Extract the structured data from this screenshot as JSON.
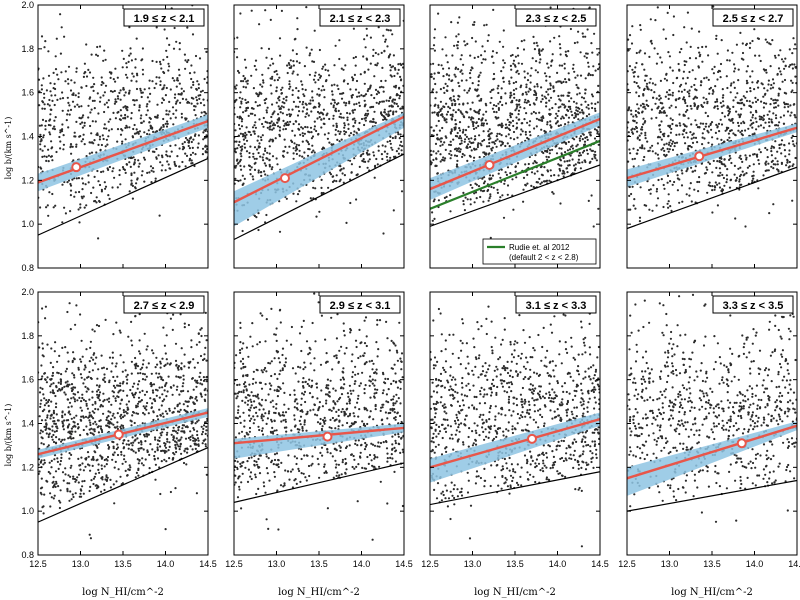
{
  "figure": {
    "xlabel": "log N_HI/cm^-2",
    "ylabel": "log b/(km s^-1)"
  },
  "chart_data": [
    {
      "type": "scatter",
      "panel": 1,
      "title": "1.9 ≤ z < 2.1",
      "xlim": [
        12.5,
        14.5
      ],
      "ylim": [
        0.8,
        2.0
      ],
      "xticks": [
        "12.5",
        "13.0",
        "13.5",
        "14.0",
        "14.5"
      ],
      "yticks": [
        "0.8",
        "1.0",
        "1.2",
        "1.4",
        "1.6",
        "1.8",
        "2.0"
      ],
      "fit_line": {
        "x": [
          12.5,
          14.5
        ],
        "y": [
          1.19,
          1.47
        ]
      },
      "band": {
        "x": [
          12.5,
          14.5
        ],
        "lower": [
          1.15,
          1.44
        ],
        "upper": [
          1.23,
          1.5
        ]
      },
      "lower_cutoff": {
        "x": [
          12.5,
          14.5
        ],
        "y": [
          0.95,
          1.3
        ]
      },
      "marker": {
        "x": 12.95,
        "y": 1.26
      },
      "scatter_center": 1.42,
      "scatter_spread": 0.22,
      "n_points": 900,
      "seed": 11
    },
    {
      "type": "scatter",
      "panel": 2,
      "title": "2.1 ≤ z < 2.3",
      "xlim": [
        12.5,
        14.5
      ],
      "ylim": [
        0.8,
        2.0
      ],
      "xticks": [
        "12.5",
        "13.0",
        "13.5",
        "14.0",
        "14.5"
      ],
      "yticks": [],
      "fit_line": {
        "x": [
          12.5,
          14.5
        ],
        "y": [
          1.1,
          1.49
        ]
      },
      "band": {
        "x": [
          12.5,
          14.5
        ],
        "lower": [
          0.99,
          1.44
        ],
        "upper": [
          1.15,
          1.51
        ]
      },
      "lower_cutoff": {
        "x": [
          12.5,
          14.5
        ],
        "y": [
          0.93,
          1.32
        ]
      },
      "marker": {
        "x": 13.1,
        "y": 1.21
      },
      "scatter_center": 1.43,
      "scatter_spread": 0.22,
      "n_points": 1100,
      "seed": 23
    },
    {
      "type": "scatter",
      "panel": 3,
      "title": "2.3 ≤ z < 2.5",
      "xlim": [
        12.5,
        14.5
      ],
      "ylim": [
        0.8,
        2.0
      ],
      "xticks": [
        "12.5",
        "13.0",
        "13.5",
        "14.0",
        "14.5"
      ],
      "yticks": [],
      "fit_line": {
        "x": [
          12.5,
          14.5
        ],
        "y": [
          1.16,
          1.48
        ]
      },
      "band": {
        "x": [
          12.5,
          14.5
        ],
        "lower": [
          1.11,
          1.45
        ],
        "upper": [
          1.21,
          1.51
        ]
      },
      "lower_cutoff": {
        "x": [
          12.5,
          14.5
        ],
        "y": [
          0.99,
          1.27
        ]
      },
      "reference_line": {
        "label": "Rudie et. al 2012",
        "x": [
          12.5,
          14.5
        ],
        "y": [
          1.07,
          1.38
        ],
        "color": "#2a7f2a"
      },
      "marker": {
        "x": 13.2,
        "y": 1.27
      },
      "legend": {
        "label": "Rudie et. al 2012",
        "note": "(default 2 < z < 2.8)",
        "position": "lower-right"
      },
      "scatter_center": 1.43,
      "scatter_spread": 0.23,
      "n_points": 1300,
      "seed": 37
    },
    {
      "type": "scatter",
      "panel": 4,
      "title": "2.5 ≤ z < 2.7",
      "xlim": [
        12.5,
        14.5
      ],
      "ylim": [
        0.8,
        2.0
      ],
      "xticks": [
        "12.5",
        "13.0",
        "13.5",
        "14.0",
        "14.5"
      ],
      "yticks": [],
      "fit_line": {
        "x": [
          12.5,
          14.5
        ],
        "y": [
          1.21,
          1.44
        ]
      },
      "band": {
        "x": [
          12.5,
          14.5
        ],
        "lower": [
          1.17,
          1.42
        ],
        "upper": [
          1.25,
          1.46
        ]
      },
      "lower_cutoff": {
        "x": [
          12.5,
          14.5
        ],
        "y": [
          0.98,
          1.26
        ]
      },
      "marker": {
        "x": 13.35,
        "y": 1.31
      },
      "scatter_center": 1.43,
      "scatter_spread": 0.22,
      "n_points": 1100,
      "seed": 41
    },
    {
      "type": "scatter",
      "panel": 5,
      "title": "2.7 ≤ z < 2.9",
      "xlim": [
        12.5,
        14.5
      ],
      "ylim": [
        0.8,
        2.0
      ],
      "xticks": [
        "12.5",
        "13.0",
        "13.5",
        "14.0",
        "14.5"
      ],
      "yticks": [
        "0.8",
        "1.0",
        "1.2",
        "1.4",
        "1.6",
        "1.8",
        "2.0"
      ],
      "fit_line": {
        "x": [
          12.5,
          14.5
        ],
        "y": [
          1.26,
          1.45
        ]
      },
      "band": {
        "x": [
          12.5,
          14.5
        ],
        "lower": [
          1.24,
          1.43
        ],
        "upper": [
          1.28,
          1.47
        ]
      },
      "lower_cutoff": {
        "x": [
          12.5,
          14.5
        ],
        "y": [
          0.95,
          1.29
        ]
      },
      "marker": {
        "x": 13.45,
        "y": 1.35
      },
      "scatter_center": 1.4,
      "scatter_spread": 0.22,
      "n_points": 1300,
      "seed": 53
    },
    {
      "type": "scatter",
      "panel": 6,
      "title": "2.9 ≤ z < 3.1",
      "xlim": [
        12.5,
        14.5
      ],
      "ylim": [
        0.8,
        2.0
      ],
      "xticks": [
        "12.5",
        "13.0",
        "13.5",
        "14.0",
        "14.5"
      ],
      "yticks": [],
      "fit_line": {
        "x": [
          12.5,
          14.5
        ],
        "y": [
          1.31,
          1.38
        ]
      },
      "band": {
        "x": [
          12.5,
          14.5
        ],
        "lower": [
          1.24,
          1.36
        ],
        "upper": [
          1.33,
          1.4
        ]
      },
      "lower_cutoff": {
        "x": [
          12.5,
          14.5
        ],
        "y": [
          1.04,
          1.22
        ]
      },
      "marker": {
        "x": 13.6,
        "y": 1.34
      },
      "scatter_center": 1.41,
      "scatter_spread": 0.22,
      "n_points": 1000,
      "seed": 67
    },
    {
      "type": "scatter",
      "panel": 7,
      "title": "3.1 ≤ z < 3.3",
      "xlim": [
        12.5,
        14.5
      ],
      "ylim": [
        0.8,
        2.0
      ],
      "xticks": [
        "12.5",
        "13.0",
        "13.5",
        "14.0",
        "14.5"
      ],
      "yticks": [],
      "fit_line": {
        "x": [
          12.5,
          14.5
        ],
        "y": [
          1.2,
          1.42
        ]
      },
      "band": {
        "x": [
          12.5,
          14.5
        ],
        "lower": [
          1.13,
          1.39
        ],
        "upper": [
          1.24,
          1.45
        ]
      },
      "lower_cutoff": {
        "x": [
          12.5,
          14.5
        ],
        "y": [
          1.03,
          1.18
        ]
      },
      "marker": {
        "x": 13.7,
        "y": 1.33
      },
      "scatter_center": 1.42,
      "scatter_spread": 0.22,
      "n_points": 1000,
      "seed": 79
    },
    {
      "type": "scatter",
      "panel": 8,
      "title": "3.3 ≤ z < 3.5",
      "xlim": [
        12.5,
        14.5
      ],
      "ylim": [
        0.8,
        2.0
      ],
      "xticks": [
        "12.5",
        "13.0",
        "13.5",
        "14.0",
        "14.5"
      ],
      "yticks": [],
      "fit_line": {
        "x": [
          12.5,
          14.5
        ],
        "y": [
          1.15,
          1.39
        ]
      },
      "band": {
        "x": [
          12.5,
          14.5
        ],
        "lower": [
          1.07,
          1.37
        ],
        "upper": [
          1.2,
          1.41
        ]
      },
      "lower_cutoff": {
        "x": [
          12.5,
          14.5
        ],
        "y": [
          1.0,
          1.14
        ]
      },
      "marker": {
        "x": 13.85,
        "y": 1.31
      },
      "scatter_center": 1.43,
      "scatter_spread": 0.23,
      "n_points": 800,
      "seed": 97
    }
  ],
  "colors": {
    "points": "#2b2b2b",
    "fit": "#e8564a",
    "band": "#8ec4e3",
    "cutoff": "#000000",
    "reference": "#2a7f2a"
  }
}
